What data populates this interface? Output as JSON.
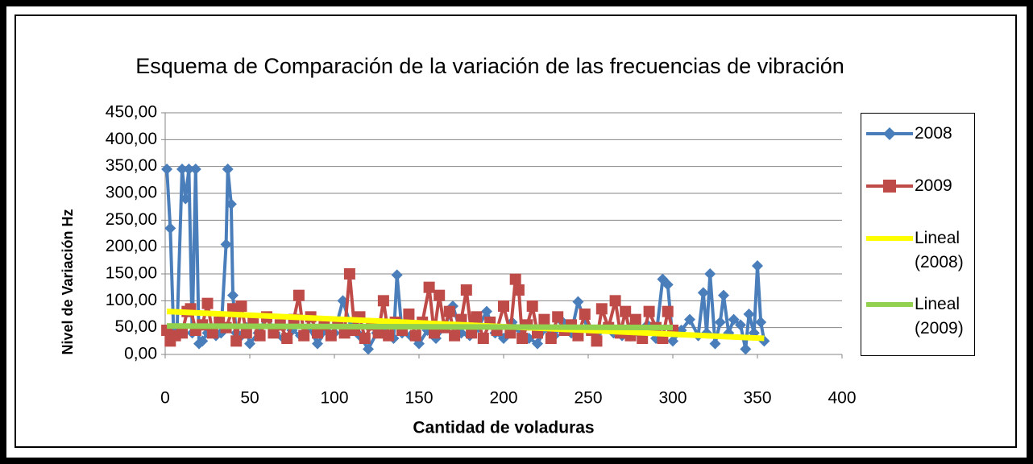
{
  "chart_data": {
    "type": "line",
    "title": "Esquema de Comparación de la variación de las frecuencias de vibración",
    "x_label": "Cantidad de voladuras",
    "y_label": "Nivel de Variación  Hz",
    "xlim": [
      0,
      400
    ],
    "xticks": [
      0,
      50,
      100,
      150,
      200,
      250,
      300,
      350,
      400
    ],
    "ylim": [
      0,
      450
    ],
    "yticks": [
      {
        "value": 0,
        "label": "0,00"
      },
      {
        "value": 50,
        "label": "50,00"
      },
      {
        "value": 100,
        "label": "100,00"
      },
      {
        "value": 150,
        "label": "150,00"
      },
      {
        "value": 200,
        "label": "200,00"
      },
      {
        "value": 250,
        "label": "250,00"
      },
      {
        "value": 300,
        "label": "300,00"
      },
      {
        "value": 350,
        "label": "350,00"
      },
      {
        "value": 400,
        "label": "400,00"
      },
      {
        "value": 450,
        "label": "450,00"
      }
    ],
    "grid": true,
    "legend": "right",
    "series": [
      {
        "name": "2008",
        "color": "#4a7ebb",
        "marker": "diamond",
        "x": [
          1,
          3,
          5,
          7,
          10,
          12,
          14,
          16,
          18,
          20,
          22,
          25,
          28,
          30,
          33,
          36,
          37,
          39,
          40,
          42,
          45,
          48,
          50,
          55,
          60,
          65,
          70,
          75,
          80,
          85,
          90,
          95,
          100,
          105,
          110,
          115,
          120,
          125,
          130,
          135,
          137,
          140,
          145,
          150,
          155,
          160,
          165,
          170,
          175,
          180,
          185,
          190,
          195,
          200,
          205,
          210,
          215,
          220,
          225,
          230,
          235,
          240,
          244,
          250,
          255,
          260,
          265,
          270,
          275,
          280,
          285,
          290,
          294,
          297,
          300,
          305,
          310,
          315,
          318,
          320,
          322,
          325,
          328,
          330,
          333,
          336,
          340,
          343,
          345,
          348,
          350,
          352,
          354
        ],
        "values": [
          345,
          235,
          40,
          45,
          345,
          290,
          345,
          40,
          345,
          20,
          25,
          40,
          45,
          35,
          40,
          205,
          345,
          280,
          110,
          40,
          35,
          50,
          20,
          40,
          70,
          40,
          30,
          45,
          35,
          50,
          20,
          45,
          40,
          100,
          50,
          35,
          10,
          40,
          50,
          30,
          148,
          40,
          35,
          20,
          45,
          30,
          50,
          90,
          40,
          35,
          50,
          80,
          40,
          30,
          60,
          45,
          30,
          20,
          50,
          35,
          60,
          40,
          98,
          45,
          30,
          50,
          40,
          35,
          50,
          40,
          55,
          30,
          140,
          130,
          25,
          45,
          65,
          35,
          115,
          40,
          150,
          20,
          60,
          110,
          40,
          65,
          55,
          10,
          75,
          40,
          165,
          60,
          25
        ]
      },
      {
        "name": "2009",
        "color": "#be4b48",
        "marker": "square",
        "x": [
          1,
          3,
          6,
          10,
          13,
          15,
          18,
          22,
          25,
          28,
          32,
          36,
          40,
          42,
          45,
          48,
          52,
          56,
          60,
          64,
          68,
          72,
          76,
          79,
          82,
          86,
          90,
          94,
          98,
          102,
          106,
          109,
          112,
          115,
          118,
          122,
          126,
          129,
          132,
          136,
          140,
          144,
          148,
          152,
          156,
          159,
          162,
          165,
          168,
          171,
          175,
          178,
          181,
          184,
          188,
          192,
          196,
          200,
          204,
          207,
          209,
          211,
          214,
          217,
          220,
          224,
          228,
          232,
          236,
          240,
          244,
          248,
          252,
          255,
          258,
          262,
          266,
          269,
          272,
          275,
          278,
          282,
          286,
          290,
          294,
          297,
          300
        ],
        "values": [
          45,
          25,
          35,
          40,
          80,
          85,
          45,
          55,
          95,
          40,
          60,
          50,
          85,
          25,
          90,
          40,
          60,
          35,
          70,
          40,
          55,
          30,
          65,
          110,
          35,
          70,
          40,
          55,
          35,
          60,
          40,
          150,
          45,
          70,
          30,
          55,
          40,
          100,
          35,
          60,
          45,
          75,
          35,
          60,
          125,
          40,
          110,
          50,
          80,
          35,
          65,
          120,
          40,
          70,
          30,
          60,
          45,
          90,
          40,
          140,
          120,
          30,
          55,
          90,
          40,
          65,
          30,
          70,
          45,
          55,
          35,
          75,
          45,
          25,
          85,
          50,
          100,
          40,
          80,
          35,
          65,
          30,
          80,
          50,
          30,
          80,
          45
        ]
      },
      {
        "name": "Lineal (2008)",
        "color": "#ffff00",
        "marker": "none",
        "x": [
          1,
          354
        ],
        "values": [
          80,
          30
        ]
      },
      {
        "name": "Lineal (2009)",
        "color": "#92d050",
        "marker": "none",
        "x": [
          1,
          300
        ],
        "values": [
          53,
          50
        ]
      }
    ]
  }
}
